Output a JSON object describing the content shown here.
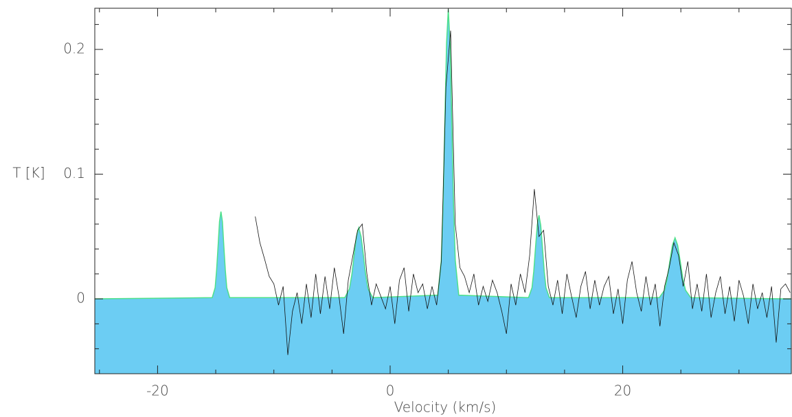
{
  "chart_data": {
    "type": "line",
    "xlabel": "Velocity (km/s)",
    "ylabel": "T [K]",
    "xlim": [
      -25.4,
      34.5
    ],
    "ylim": [
      -0.06,
      0.233
    ],
    "xticks": [
      -20,
      0,
      20
    ],
    "xminorticks": [
      -25,
      -15,
      -10,
      -5,
      5,
      10,
      15,
      25,
      30
    ],
    "yticks": [
      0,
      0.1,
      0.2
    ],
    "yminorticks": [
      -0.04,
      -0.02,
      0.02,
      0.04,
      0.06,
      0.08,
      0.12,
      0.14,
      0.16,
      0.18,
      0.22
    ],
    "model": {
      "fill": "#6ccdf3",
      "color": "#4ee08a",
      "x": [
        -25.4,
        -15.3,
        -15.05,
        -14.925,
        -14.8,
        -14.675,
        -14.55,
        -14.425,
        -14.3,
        -14.175,
        -14.05,
        -13.8,
        -3.9,
        -3.5,
        -3.3,
        -3.1,
        -2.9,
        -2.7,
        -2.5,
        -2.3,
        -2.1,
        -1.9,
        -1.5,
        4.1,
        4.4,
        4.55,
        4.7,
        4.85,
        5.0,
        5.15,
        5.3,
        5.45,
        5.6,
        5.9,
        11.9,
        12.2,
        12.35,
        12.5,
        12.65,
        12.8,
        12.95,
        13.1,
        13.25,
        13.4,
        13.7,
        23.15,
        23.6,
        23.825,
        24.05,
        24.275,
        24.5,
        24.725,
        24.95,
        25.175,
        25.4,
        25.85,
        34.5
      ],
      "values": [
        0,
        0.001,
        0.009,
        0.023,
        0.042,
        0.062,
        0.07,
        0.062,
        0.042,
        0.023,
        0.009,
        0.001,
        0.001,
        0.008,
        0.019,
        0.035,
        0.05,
        0.057,
        0.05,
        0.035,
        0.019,
        0.008,
        0.001,
        0.003,
        0.031,
        0.075,
        0.141,
        0.205,
        0.232,
        0.205,
        0.141,
        0.075,
        0.031,
        0.003,
        0.001,
        0.009,
        0.022,
        0.041,
        0.059,
        0.067,
        0.059,
        0.041,
        0.022,
        0.009,
        0.001,
        0.001,
        0.007,
        0.016,
        0.03,
        0.043,
        0.049,
        0.043,
        0.03,
        0.016,
        0.007,
        0.001,
        0
      ]
    },
    "spectrum": {
      "color": "#111111",
      "x": [
        -11.6,
        -11.2,
        -10.8,
        -10.4,
        -10.0,
        -9.6,
        -9.2,
        -8.8,
        -8.4,
        -8.0,
        -7.6,
        -7.2,
        -6.8,
        -6.4,
        -6.0,
        -5.6,
        -5.2,
        -4.8,
        -4.4,
        -4.0,
        -3.6,
        -3.2,
        -2.8,
        -2.4,
        -2.0,
        -1.6,
        -1.2,
        -0.8,
        -0.4,
        0,
        0.4,
        0.8,
        1.2,
        1.6,
        2.0,
        2.4,
        2.8,
        3.2,
        3.6,
        4.0,
        4.4,
        4.8,
        5.2,
        5.6,
        6.0,
        6.4,
        6.8,
        7.2,
        7.6,
        8.0,
        8.4,
        8.8,
        9.2,
        9.6,
        10.0,
        10.4,
        10.8,
        11.2,
        11.6,
        12.0,
        12.4,
        12.8,
        13.2,
        13.6,
        14.0,
        14.4,
        14.8,
        15.2,
        15.6,
        16.0,
        16.4,
        16.8,
        17.2,
        17.6,
        18.0,
        18.4,
        18.8,
        19.2,
        19.6,
        20.0,
        20.4,
        20.8,
        21.2,
        21.6,
        22.0,
        22.4,
        22.8,
        23.2,
        23.6,
        24.0,
        24.4,
        24.8,
        25.2,
        25.6,
        26.0,
        26.4,
        26.8,
        27.2,
        27.6,
        28.0,
        28.4,
        28.8,
        29.2,
        29.6,
        30.0,
        30.4,
        30.8,
        31.2,
        31.6,
        32.0,
        32.4,
        32.8,
        33.2,
        33.6,
        34.0,
        34.4
      ],
      "values": [
        0.066,
        0.045,
        0.032,
        0.018,
        0.012,
        -0.005,
        0.01,
        -0.045,
        -0.01,
        0.005,
        -0.02,
        0.012,
        -0.015,
        0.02,
        -0.012,
        0.018,
        -0.008,
        0.025,
        0.002,
        -0.028,
        0.015,
        0.035,
        0.055,
        0.06,
        0.02,
        -0.005,
        0.012,
        0.002,
        -0.008,
        0.01,
        -0.02,
        0.015,
        0.025,
        -0.01,
        0.02,
        0.005,
        0.012,
        -0.008,
        0.01,
        -0.005,
        0.03,
        0.17,
        0.215,
        0.06,
        0.025,
        0.018,
        0.005,
        0.02,
        -0.005,
        0.01,
        -0.002,
        0.015,
        0.005,
        -0.01,
        -0.028,
        0.012,
        -0.005,
        0.02,
        0.005,
        0.035,
        0.088,
        0.05,
        0.055,
        0.01,
        -0.005,
        0.015,
        -0.012,
        0.02,
        0.002,
        -0.015,
        0.01,
        0.022,
        -0.008,
        0.015,
        -0.005,
        0.01,
        0.018,
        -0.012,
        0.008,
        -0.02,
        0.015,
        0.03,
        0.005,
        -0.01,
        0.018,
        -0.005,
        0.012,
        -0.022,
        0.01,
        0.025,
        0.045,
        0.035,
        0.01,
        0.03,
        -0.008,
        0.012,
        -0.01,
        0.02,
        -0.015,
        0.005,
        0.018,
        -0.012,
        0.01,
        -0.018,
        0.015,
        0.002,
        -0.02,
        0.012,
        -0.008,
        0.005,
        -0.015,
        0.01,
        -0.035,
        0.008,
        0.012,
        0.005
      ]
    }
  }
}
